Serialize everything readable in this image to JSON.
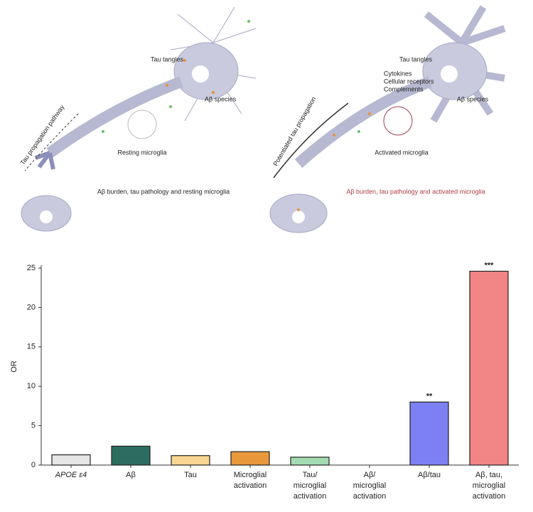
{
  "illustrations": [
    {
      "tau_tangles": "Tau tangles",
      "abeta_species": "Aβ species",
      "pathway": "Tau propagation pathway",
      "microglia": "Resting microglia",
      "caption": "Aβ burden, tau pathology and resting microglia"
    },
    {
      "cytokines": "Cytokines",
      "receptors": "Cellular receptors",
      "complements": "Complements",
      "tau_tangles": "Tau tangles",
      "abeta_species": "Aβ species",
      "pathway": "Potentiated tau propagation",
      "microglia": "Activated microglia",
      "caption": "Aβ burden, tau pathology and activated microglia"
    }
  ],
  "chart_data": {
    "type": "bar",
    "ylabel": "OR",
    "categories": [
      [
        "APOE ε4"
      ],
      [
        "Aβ"
      ],
      [
        "Tau"
      ],
      [
        "Microglial",
        "activation"
      ],
      [
        "Tau/",
        "microglial",
        "activation"
      ],
      [
        "Aβ/",
        "microglial",
        "activation"
      ],
      [
        "Aβ/tau"
      ],
      [
        "Aβ, tau,",
        "microglial",
        "activation"
      ]
    ],
    "values": [
      1.3,
      2.4,
      1.2,
      1.7,
      1.0,
      null,
      8.0,
      24.6
    ],
    "colors": [
      "#e6e6e6",
      "#2b6e60",
      "#f6d690",
      "#e9983c",
      "#a3dcb2",
      null,
      "#7c80f2",
      "#f28585"
    ],
    "annotations": [
      null,
      null,
      null,
      null,
      null,
      null,
      "**",
      "***"
    ],
    "ylim": [
      0,
      25
    ],
    "yticks": [
      0,
      5,
      10,
      15,
      20,
      25
    ]
  }
}
